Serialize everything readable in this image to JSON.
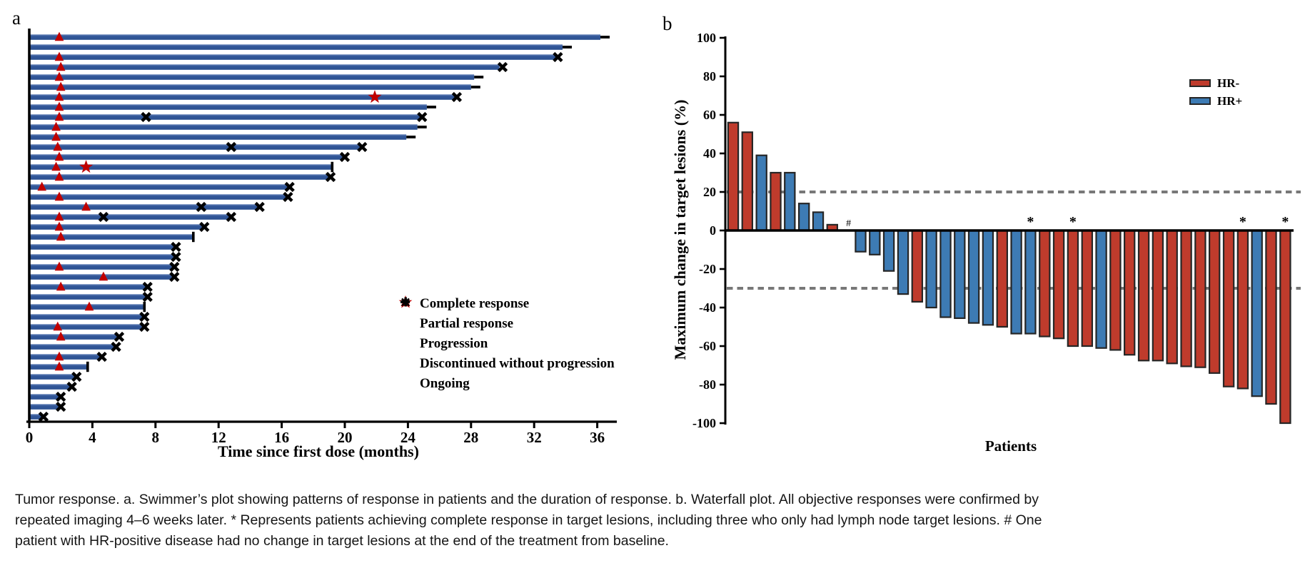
{
  "figure": {
    "background": "#ffffff",
    "panel_a_label": "a",
    "panel_b_label": "b"
  },
  "caption": {
    "text": "Tumor response. a. Swimmer’s plot showing patterns of response in patients and the duration of response. b. Waterfall plot. All objective responses were confirmed by repeated imaging 4–6 weeks later. * Represents patients achieving complete response in target lesions, including three who only had lymph node target lesions. # One patient with HR-positive disease had no change in target lesions at the end of the treatment from baseline."
  },
  "chart_data": [
    {
      "id": "swimmers_plot",
      "type": "bar",
      "orientation": "horizontal",
      "title": "",
      "xlabel": "Time since first dose (months)",
      "xlim": [
        0,
        37.5
      ],
      "xticks": [
        0,
        4,
        8,
        12,
        16,
        20,
        24,
        28,
        32,
        36
      ],
      "bar_color": "#2e5697",
      "response_marker_color": "#c00000",
      "event_marker_color": "#000000",
      "legend": [
        {
          "marker": "complete-response-star",
          "label": "Complete response"
        },
        {
          "marker": "partial-response-triangle",
          "label": "Partial response"
        },
        {
          "marker": "progression-x",
          "label": "Progression"
        },
        {
          "marker": "discontinued-tick",
          "label": "Discontinued without progression"
        },
        {
          "marker": "ongoing-dash",
          "label": "Ongoing"
        }
      ],
      "patients": [
        {
          "duration_months": 36.2,
          "events": [
            {
              "type": "partial_response",
              "month": 1.9
            },
            {
              "type": "ongoing",
              "month": 36.2
            }
          ]
        },
        {
          "duration_months": 33.8,
          "events": [
            {
              "type": "ongoing",
              "month": 33.8
            }
          ]
        },
        {
          "duration_months": 33.4,
          "events": [
            {
              "type": "partial_response",
              "month": 1.9
            },
            {
              "type": "progression",
              "month": 33.5
            }
          ]
        },
        {
          "duration_months": 29.8,
          "events": [
            {
              "type": "partial_response",
              "month": 2.0
            },
            {
              "type": "progression",
              "month": 30.0
            }
          ]
        },
        {
          "duration_months": 28.2,
          "events": [
            {
              "type": "partial_response",
              "month": 1.9
            },
            {
              "type": "ongoing",
              "month": 28.2
            }
          ]
        },
        {
          "duration_months": 28.0,
          "events": [
            {
              "type": "partial_response",
              "month": 2.0
            },
            {
              "type": "ongoing",
              "month": 28.0
            }
          ]
        },
        {
          "duration_months": 27.0,
          "events": [
            {
              "type": "partial_response",
              "month": 1.9
            },
            {
              "type": "complete_response",
              "month": 21.9
            },
            {
              "type": "progression",
              "month": 27.1
            }
          ]
        },
        {
          "duration_months": 25.2,
          "events": [
            {
              "type": "partial_response",
              "month": 1.9
            },
            {
              "type": "ongoing",
              "month": 25.2
            }
          ]
        },
        {
          "duration_months": 24.8,
          "events": [
            {
              "type": "partial_response",
              "month": 1.9
            },
            {
              "type": "progression",
              "month": 7.4
            },
            {
              "type": "progression",
              "month": 24.9
            }
          ]
        },
        {
          "duration_months": 24.6,
          "events": [
            {
              "type": "partial_response",
              "month": 1.7
            },
            {
              "type": "ongoing",
              "month": 24.6
            }
          ]
        },
        {
          "duration_months": 23.9,
          "events": [
            {
              "type": "partial_response",
              "month": 1.7
            },
            {
              "type": "ongoing",
              "month": 23.9
            }
          ]
        },
        {
          "duration_months": 21.0,
          "events": [
            {
              "type": "partial_response",
              "month": 1.8
            },
            {
              "type": "progression",
              "month": 12.8
            },
            {
              "type": "progression",
              "month": 21.1
            }
          ]
        },
        {
          "duration_months": 19.9,
          "events": [
            {
              "type": "partial_response",
              "month": 1.9
            },
            {
              "type": "progression",
              "month": 20.0
            }
          ]
        },
        {
          "duration_months": 19.2,
          "events": [
            {
              "type": "partial_response",
              "month": 1.7
            },
            {
              "type": "complete_response",
              "month": 3.6
            },
            {
              "type": "discontinued",
              "month": 19.2
            }
          ]
        },
        {
          "duration_months": 19.0,
          "events": [
            {
              "type": "partial_response",
              "month": 1.9
            },
            {
              "type": "progression",
              "month": 19.1
            }
          ]
        },
        {
          "duration_months": 16.4,
          "events": [
            {
              "type": "partial_response",
              "month": 0.8
            },
            {
              "type": "progression",
              "month": 16.5
            }
          ]
        },
        {
          "duration_months": 16.3,
          "events": [
            {
              "type": "partial_response",
              "month": 1.9
            },
            {
              "type": "progression",
              "month": 16.4
            }
          ]
        },
        {
          "duration_months": 14.5,
          "events": [
            {
              "type": "partial_response",
              "month": 3.6
            },
            {
              "type": "progression",
              "month": 10.9
            },
            {
              "type": "progression",
              "month": 14.6
            }
          ]
        },
        {
          "duration_months": 12.7,
          "events": [
            {
              "type": "partial_response",
              "month": 1.9
            },
            {
              "type": "progression",
              "month": 4.7
            },
            {
              "type": "progression",
              "month": 12.8
            }
          ]
        },
        {
          "duration_months": 11.0,
          "events": [
            {
              "type": "partial_response",
              "month": 1.9
            },
            {
              "type": "progression",
              "month": 11.1
            }
          ]
        },
        {
          "duration_months": 10.4,
          "events": [
            {
              "type": "partial_response",
              "month": 2.0
            },
            {
              "type": "discontinued",
              "month": 10.4
            }
          ]
        },
        {
          "duration_months": 9.2,
          "events": [
            {
              "type": "progression",
              "month": 9.3
            }
          ]
        },
        {
          "duration_months": 9.2,
          "events": [
            {
              "type": "progression",
              "month": 9.3
            }
          ]
        },
        {
          "duration_months": 9.1,
          "events": [
            {
              "type": "partial_response",
              "month": 1.9
            },
            {
              "type": "progression",
              "month": 9.2
            }
          ]
        },
        {
          "duration_months": 9.1,
          "events": [
            {
              "type": "partial_response",
              "month": 4.7
            },
            {
              "type": "progression",
              "month": 9.2
            }
          ]
        },
        {
          "duration_months": 7.4,
          "events": [
            {
              "type": "partial_response",
              "month": 2.0
            },
            {
              "type": "progression",
              "month": 7.5
            }
          ]
        },
        {
          "duration_months": 7.4,
          "events": [
            {
              "type": "progression",
              "month": 7.5
            }
          ]
        },
        {
          "duration_months": 7.3,
          "events": [
            {
              "type": "partial_response",
              "month": 3.8
            },
            {
              "type": "discontinued",
              "month": 7.3
            }
          ]
        },
        {
          "duration_months": 7.2,
          "events": [
            {
              "type": "progression",
              "month": 7.3
            }
          ]
        },
        {
          "duration_months": 7.2,
          "events": [
            {
              "type": "partial_response",
              "month": 1.8
            },
            {
              "type": "progression",
              "month": 7.3
            }
          ]
        },
        {
          "duration_months": 5.6,
          "events": [
            {
              "type": "partial_response",
              "month": 2.0
            },
            {
              "type": "progression",
              "month": 5.7
            }
          ]
        },
        {
          "duration_months": 5.4,
          "events": [
            {
              "type": "progression",
              "month": 5.5
            }
          ]
        },
        {
          "duration_months": 4.5,
          "events": [
            {
              "type": "partial_response",
              "month": 1.9
            },
            {
              "type": "progression",
              "month": 4.6
            }
          ]
        },
        {
          "duration_months": 3.7,
          "events": [
            {
              "type": "partial_response",
              "month": 1.9
            },
            {
              "type": "discontinued",
              "month": 3.7
            }
          ]
        },
        {
          "duration_months": 2.9,
          "events": [
            {
              "type": "progression",
              "month": 3.0
            }
          ]
        },
        {
          "duration_months": 2.6,
          "events": [
            {
              "type": "progression",
              "month": 2.7
            }
          ]
        },
        {
          "duration_months": 1.9,
          "events": [
            {
              "type": "progression",
              "month": 2.0
            }
          ]
        },
        {
          "duration_months": 1.9,
          "events": [
            {
              "type": "progression",
              "month": 2.0
            }
          ]
        },
        {
          "duration_months": 0.8,
          "events": [
            {
              "type": "progression",
              "month": 0.9
            }
          ]
        }
      ]
    },
    {
      "id": "waterfall_plot",
      "type": "bar",
      "title": "",
      "ylabel": "Maximum change in target lesions (%)",
      "xlabel": "Patients",
      "ylim": [
        -100,
        100
      ],
      "yticks": [
        100,
        80,
        60,
        40,
        20,
        0,
        -20,
        -40,
        -60,
        -80,
        -100
      ],
      "reference_lines": [
        20,
        -30
      ],
      "reference_line_color": "#787878",
      "series_colors": {
        "HR-": "#bf3b2c",
        "HR+": "#3d7bb4"
      },
      "legend": [
        {
          "label": "HR-",
          "color": "#bf3b2c"
        },
        {
          "label": "HR+",
          "color": "#3d7bb4"
        }
      ],
      "bars": [
        {
          "value": 56,
          "group": "HR-"
        },
        {
          "value": 51,
          "group": "HR-"
        },
        {
          "value": 39,
          "group": "HR+"
        },
        {
          "value": 30,
          "group": "HR-"
        },
        {
          "value": 30,
          "group": "HR+"
        },
        {
          "value": 14,
          "group": "HR+"
        },
        {
          "value": 9.5,
          "group": "HR+"
        },
        {
          "value": 3,
          "group": "HR-"
        },
        {
          "value": 0,
          "group": "HR+",
          "annotation": "#"
        },
        {
          "value": -11,
          "group": "HR+"
        },
        {
          "value": -12.5,
          "group": "HR+"
        },
        {
          "value": -21,
          "group": "HR+"
        },
        {
          "value": -33,
          "group": "HR+"
        },
        {
          "value": -37,
          "group": "HR-"
        },
        {
          "value": -40,
          "group": "HR+"
        },
        {
          "value": -45,
          "group": "HR+"
        },
        {
          "value": -45.5,
          "group": "HR+"
        },
        {
          "value": -48,
          "group": "HR+"
        },
        {
          "value": -49,
          "group": "HR+"
        },
        {
          "value": -50,
          "group": "HR-"
        },
        {
          "value": -53.5,
          "group": "HR+"
        },
        {
          "value": -53.5,
          "group": "HR+",
          "annotation": "*"
        },
        {
          "value": -55,
          "group": "HR-"
        },
        {
          "value": -56,
          "group": "HR-"
        },
        {
          "value": -60,
          "group": "HR-",
          "annotation": "*"
        },
        {
          "value": -60,
          "group": "HR-"
        },
        {
          "value": -61,
          "group": "HR+"
        },
        {
          "value": -62,
          "group": "HR-"
        },
        {
          "value": -64.5,
          "group": "HR-"
        },
        {
          "value": -67.5,
          "group": "HR-"
        },
        {
          "value": -67.5,
          "group": "HR-"
        },
        {
          "value": -69,
          "group": "HR-"
        },
        {
          "value": -70.5,
          "group": "HR-"
        },
        {
          "value": -71,
          "group": "HR-"
        },
        {
          "value": -74,
          "group": "HR-"
        },
        {
          "value": -81,
          "group": "HR-"
        },
        {
          "value": -82,
          "group": "HR-",
          "annotation": "*"
        },
        {
          "value": -86,
          "group": "HR+"
        },
        {
          "value": -90,
          "group": "HR-"
        },
        {
          "value": -100,
          "group": "HR-",
          "annotation": "*"
        }
      ]
    }
  ]
}
